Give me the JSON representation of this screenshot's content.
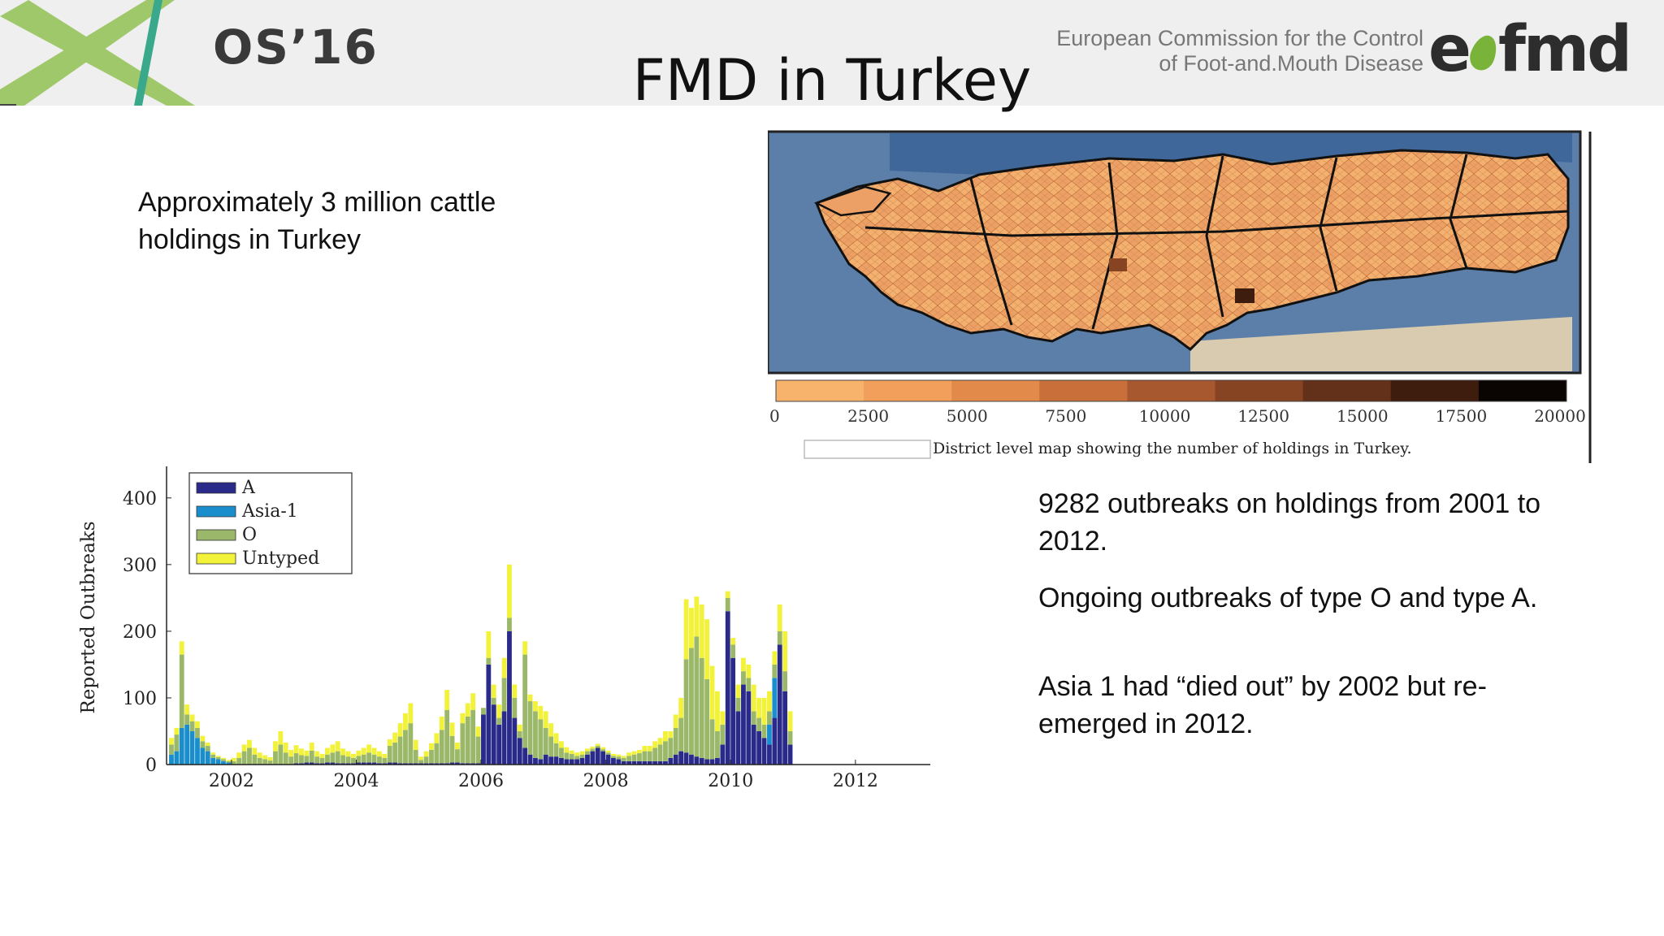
{
  "header": {
    "os_label": "OS’16",
    "title": "FMD in Turkey",
    "commission_line1": "European Commission for the Control",
    "commission_line2": "of Foot-and.Mouth Disease",
    "logo_text_a": "e",
    "logo_text_b": "fmd"
  },
  "left_text": {
    "line1": "Approximately 3 million cattle",
    "line2": "holdings in Turkey"
  },
  "right_text": {
    "p1_line1": "9282 outbreaks on holdings from 2001 to",
    "p1_line2": "2012.",
    "p2": "Ongoing outbreaks of type O and type A.",
    "p3_line1": "Asia 1 had “died out” by 2002 but re-",
    "p3_line2": "emerged in 2012."
  },
  "map": {
    "colorbar_ticks": [
      "0",
      "2500",
      "5000",
      "7500",
      "10000",
      "12500",
      "15000",
      "17500",
      "20000"
    ],
    "colorbar_colors": [
      "#f7b36c",
      "#f19f5a",
      "#e28a4a",
      "#c9703a",
      "#a8582e",
      "#864423",
      "#633119",
      "#3e1d0e",
      "#0a0503"
    ],
    "caption": "District level map showing the number of holdings in Turkey.",
    "colors": {
      "sea": "#5b7fa8",
      "land_light": "#f6b97a",
      "land_mid": "#e9955a",
      "land_dark": "#a8582e",
      "outline": "#111111"
    }
  },
  "chart_data": {
    "type": "bar",
    "stacked": true,
    "ylabel": "Reported Outbreaks",
    "xlabel": "",
    "ylim": [
      0,
      440
    ],
    "yticks": [
      0,
      100,
      200,
      300,
      400
    ],
    "xticks": [
      "2002",
      "2004",
      "2006",
      "2008",
      "2010",
      "2012"
    ],
    "x_range": [
      "2001-01",
      "2012-12"
    ],
    "legend_position": "top-left",
    "grid": false,
    "series": [
      {
        "name": "A",
        "color": "#2a2a8a",
        "values": [
          0,
          0,
          0,
          0,
          0,
          0,
          0,
          0,
          0,
          0,
          0,
          0,
          0,
          0,
          0,
          0,
          0,
          0,
          0,
          0,
          0,
          0,
          0,
          0,
          2,
          2,
          3,
          3,
          2,
          2,
          3,
          3,
          2,
          2,
          2,
          2,
          3,
          3,
          3,
          3,
          2,
          2,
          3,
          3,
          2,
          2,
          2,
          2,
          2,
          2,
          2,
          2,
          2,
          2,
          3,
          3,
          2,
          2,
          2,
          2,
          75,
          150,
          90,
          60,
          80,
          200,
          70,
          40,
          25,
          15,
          10,
          8,
          15,
          12,
          12,
          10,
          8,
          8,
          8,
          10,
          15,
          20,
          25,
          20,
          15,
          10,
          8,
          5,
          5,
          5,
          5,
          5,
          5,
          5,
          5,
          5,
          10,
          15,
          20,
          18,
          15,
          12,
          10,
          8,
          8,
          10,
          30,
          230,
          160,
          80,
          120,
          110,
          60,
          50,
          40,
          30,
          70,
          180,
          110,
          30
        ]
      },
      {
        "name": "Asia-1",
        "color": "#1a8ecc",
        "values": [
          15,
          20,
          55,
          60,
          50,
          40,
          25,
          20,
          10,
          8,
          5,
          3,
          0,
          0,
          0,
          0,
          0,
          0,
          0,
          0,
          0,
          0,
          0,
          0,
          0,
          0,
          0,
          0,
          0,
          0,
          0,
          0,
          0,
          0,
          0,
          0,
          0,
          0,
          0,
          0,
          0,
          0,
          0,
          0,
          0,
          0,
          0,
          0,
          0,
          0,
          0,
          0,
          0,
          0,
          0,
          0,
          0,
          0,
          0,
          0,
          0,
          0,
          0,
          0,
          0,
          0,
          0,
          0,
          0,
          0,
          0,
          0,
          0,
          0,
          0,
          0,
          0,
          0,
          0,
          0,
          0,
          0,
          0,
          0,
          0,
          0,
          0,
          0,
          0,
          0,
          0,
          0,
          0,
          0,
          0,
          0,
          0,
          0,
          0,
          0,
          0,
          0,
          0,
          0,
          0,
          0,
          0,
          0,
          0,
          0,
          0,
          0,
          0,
          0,
          0,
          30,
          60,
          0,
          0,
          0
        ]
      },
      {
        "name": "O",
        "color": "#9bb86a",
        "values": [
          15,
          25,
          110,
          15,
          15,
          15,
          10,
          8,
          5,
          3,
          3,
          2,
          5,
          10,
          20,
          25,
          15,
          10,
          8,
          6,
          20,
          30,
          18,
          12,
          15,
          12,
          10,
          18,
          10,
          8,
          12,
          15,
          18,
          12,
          10,
          8,
          10,
          12,
          15,
          12,
          10,
          8,
          25,
          30,
          40,
          50,
          60,
          20,
          5,
          10,
          20,
          30,
          50,
          80,
          40,
          20,
          60,
          70,
          80,
          40,
          10,
          10,
          10,
          10,
          50,
          20,
          30,
          10,
          140,
          80,
          70,
          60,
          40,
          30,
          20,
          15,
          10,
          8,
          5,
          5,
          5,
          4,
          3,
          3,
          3,
          3,
          4,
          5,
          8,
          10,
          12,
          15,
          15,
          20,
          25,
          30,
          30,
          40,
          50,
          140,
          160,
          180,
          150,
          120,
          60,
          40,
          30,
          20,
          20,
          20,
          20,
          20,
          20,
          20,
          20,
          20,
          20,
          20,
          30,
          20
        ]
      },
      {
        "name": "Untyped",
        "color": "#f2f23a",
        "values": [
          10,
          10,
          20,
          15,
          10,
          10,
          8,
          5,
          3,
          2,
          2,
          2,
          5,
          8,
          10,
          12,
          10,
          8,
          6,
          5,
          15,
          20,
          15,
          10,
          12,
          10,
          8,
          12,
          8,
          6,
          10,
          12,
          15,
          10,
          8,
          6,
          8,
          10,
          12,
          10,
          8,
          6,
          10,
          15,
          20,
          25,
          30,
          15,
          5,
          8,
          10,
          15,
          20,
          30,
          20,
          10,
          15,
          20,
          25,
          15,
          0,
          40,
          20,
          20,
          30,
          80,
          20,
          10,
          20,
          10,
          15,
          20,
          25,
          20,
          15,
          10,
          8,
          5,
          5,
          5,
          4,
          3,
          3,
          3,
          3,
          3,
          3,
          3,
          5,
          5,
          5,
          8,
          8,
          10,
          10,
          15,
          10,
          20,
          30,
          90,
          60,
          60,
          80,
          90,
          80,
          60,
          20,
          10,
          10,
          20,
          20,
          20,
          40,
          30,
          40,
          30,
          20,
          40,
          60,
          30
        ]
      }
    ]
  }
}
